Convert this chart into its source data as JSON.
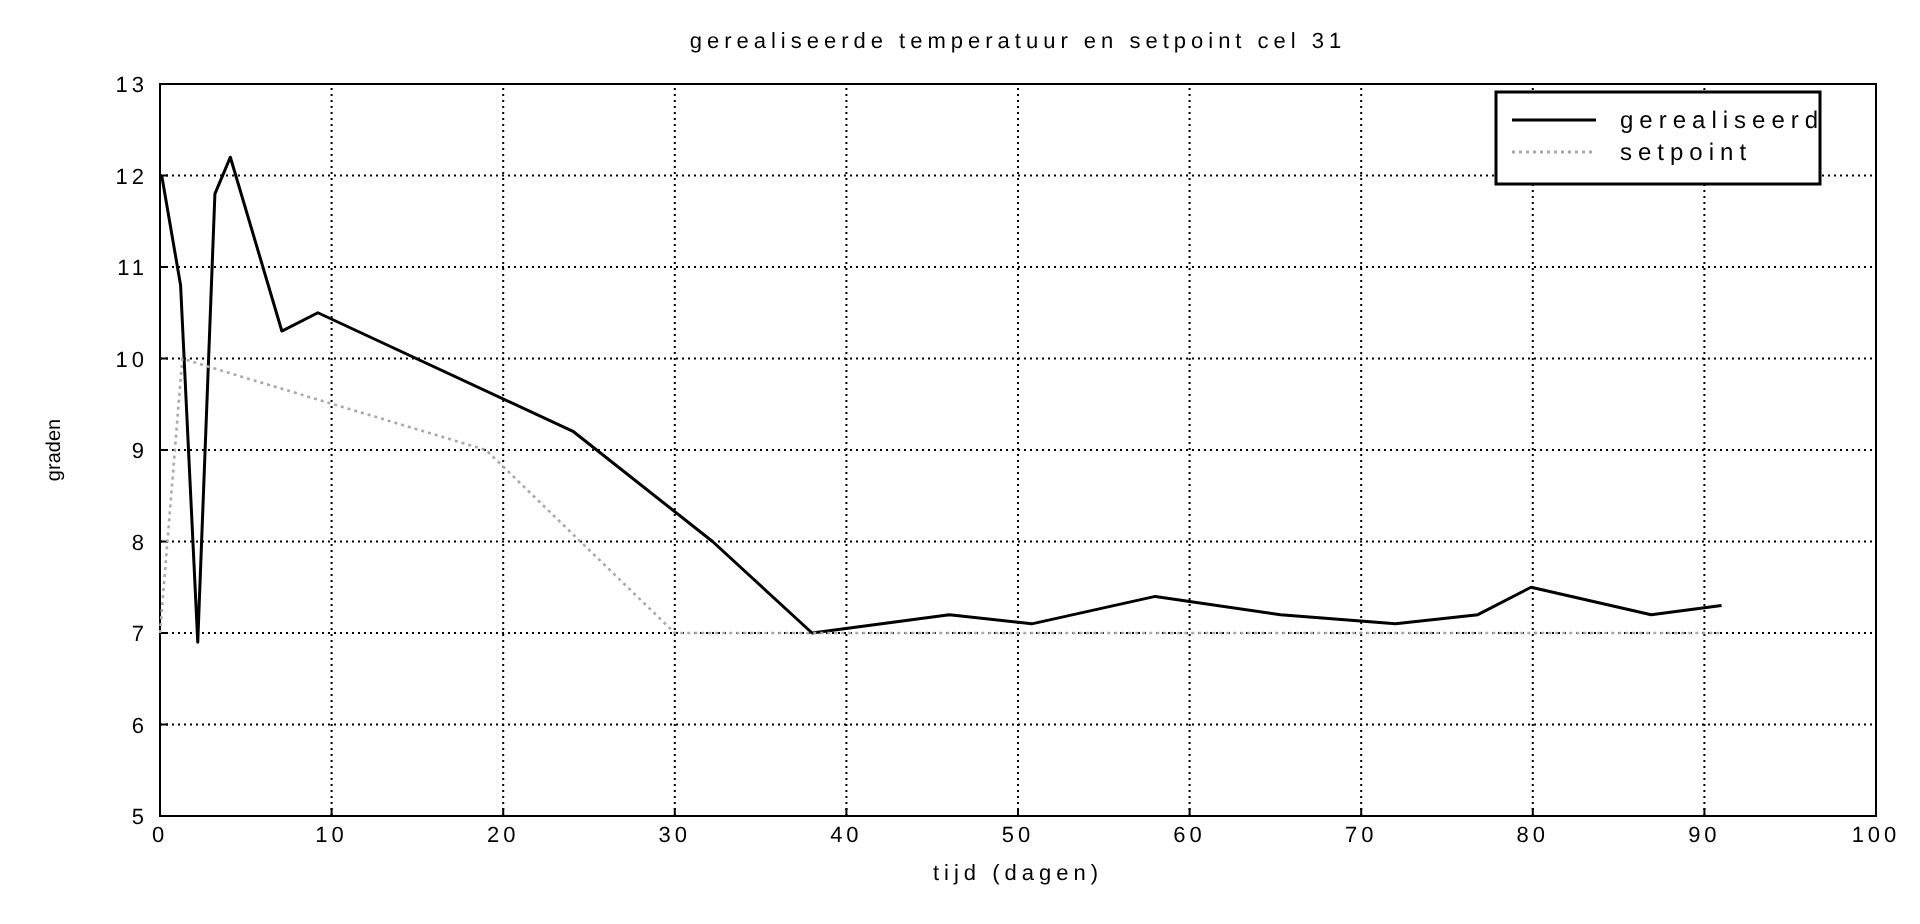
{
  "chart_data": {
    "type": "line",
    "title": "gerealiseerde temperatuur en setpoint cel 31",
    "xlabel": "tijd (dagen)",
    "ylabel": "graden",
    "xlim": [
      0,
      100
    ],
    "xticks": [
      0,
      10,
      20,
      30,
      40,
      50,
      60,
      70,
      80,
      90,
      100
    ],
    "ylim": [
      5,
      13
    ],
    "yticks": [
      5,
      6,
      7,
      8,
      9,
      10,
      11,
      12,
      13
    ],
    "grid": true,
    "legend": "top right",
    "series": [
      {
        "name": "gerealiseerd",
        "color": "#000000",
        "line_style": "solid",
        "x": [
          0.1,
          1.2,
          2.2,
          3.2,
          4.1,
          7.1,
          9.2,
          24.1,
          32.2,
          38,
          46,
          50.8,
          58,
          65.3,
          72,
          76.8,
          79.9,
          86.9,
          91
        ],
        "values": [
          12,
          10.8,
          6.9,
          11.8,
          12.2,
          10.3,
          10.5,
          9.2,
          8,
          7,
          7.2,
          7.1,
          7.4,
          7.2,
          7.1,
          7.2,
          7.5,
          7.2,
          7.3
        ]
      },
      {
        "name": "setpoint",
        "color": "#aaaaaa",
        "line_style": "dotted",
        "x": [
          0,
          1.3,
          3,
          19,
          30,
          91
        ],
        "values": [
          7,
          10,
          9.9,
          9,
          7,
          7
        ]
      }
    ]
  }
}
